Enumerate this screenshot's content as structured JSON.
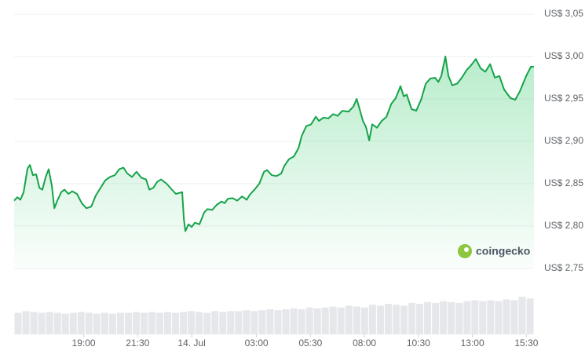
{
  "chart_data": {
    "type": "line",
    "watermark": "coingecko",
    "x": [
      -8.22,
      -8.07,
      -7.93,
      -7.78,
      -7.6,
      -7.49,
      -7.35,
      -7.2,
      -7.05,
      -6.91,
      -6.76,
      -6.62,
      -6.47,
      -6.36,
      -6.22,
      -6.04,
      -5.89,
      -5.71,
      -5.53,
      -5.31,
      -5.09,
      -4.87,
      -4.65,
      -4.44,
      -4.22,
      -4,
      -3.78,
      -3.56,
      -3.35,
      -3.16,
      -2.98,
      -2.76,
      -2.55,
      -2.33,
      -2.11,
      -1.96,
      -1.78,
      -1.6,
      -1.42,
      -1.16,
      -0.95,
      -0.73,
      -0.44,
      -0.36,
      -0.29,
      -0.15,
      0,
      0.15,
      0.36,
      0.58,
      0.73,
      0.95,
      1.16,
      1.38,
      1.53,
      1.67,
      1.89,
      2.11,
      2.33,
      2.55,
      2.69,
      2.91,
      3.13,
      3.35,
      3.49,
      3.71,
      3.93,
      4.15,
      4.29,
      4.51,
      4.73,
      4.95,
      5.09,
      5.31,
      5.53,
      5.75,
      5.89,
      6.11,
      6.33,
      6.55,
      6.76,
      6.98,
      7.27,
      7.49,
      7.64,
      7.78,
      7.93,
      8.07,
      8.22,
      8.36,
      8.58,
      8.8,
      9.02,
      9.24,
      9.45,
      9.67,
      9.82,
      9.96,
      10.18,
      10.4,
      10.62,
      10.84,
      11.05,
      11.27,
      11.42,
      11.56,
      11.75,
      11.89,
      12.07,
      12.29,
      12.51,
      12.73,
      12.95,
      13.16,
      13.38,
      13.6,
      13.82,
      14.04,
      14.25,
      14.47,
      14.76,
      14.98,
      15.2,
      15.49,
      15.71,
      15.85
    ],
    "series": [
      {
        "color": "#16a34a",
        "values": [
          2.83,
          2.834,
          2.831,
          2.84,
          2.868,
          2.872,
          2.86,
          2.861,
          2.845,
          2.843,
          2.858,
          2.867,
          2.847,
          2.821,
          2.83,
          2.84,
          2.843,
          2.838,
          2.841,
          2.838,
          2.827,
          2.821,
          2.823,
          2.836,
          2.845,
          2.854,
          2.858,
          2.86,
          2.867,
          2.869,
          2.862,
          2.858,
          2.864,
          2.857,
          2.855,
          2.843,
          2.845,
          2.852,
          2.855,
          2.85,
          2.844,
          2.838,
          2.84,
          2.808,
          2.794,
          2.802,
          2.799,
          2.804,
          2.802,
          2.816,
          2.82,
          2.819,
          2.825,
          2.829,
          2.827,
          2.832,
          2.833,
          2.83,
          2.835,
          2.831,
          2.837,
          2.843,
          2.85,
          2.864,
          2.866,
          2.86,
          2.859,
          2.862,
          2.871,
          2.879,
          2.882,
          2.892,
          2.906,
          2.918,
          2.92,
          2.929,
          2.924,
          2.928,
          2.927,
          2.932,
          2.93,
          2.936,
          2.935,
          2.941,
          2.95,
          2.938,
          2.924,
          2.917,
          2.901,
          2.92,
          2.916,
          2.924,
          2.929,
          2.944,
          2.951,
          2.965,
          2.953,
          2.955,
          2.938,
          2.936,
          2.949,
          2.968,
          2.974,
          2.975,
          2.97,
          2.977,
          3.0,
          2.977,
          2.966,
          2.968,
          2.975,
          2.984,
          2.99,
          2.997,
          2.986,
          2.982,
          2.991,
          2.975,
          2.977,
          2.961,
          2.951,
          2.949,
          2.959,
          2.977,
          2.988,
          2.988
        ]
      }
    ],
    "volume": {
      "color": "#e5e7eb",
      "values": [
        24,
        26,
        25,
        24,
        25,
        24,
        23,
        24,
        25,
        24,
        23,
        24,
        23,
        24,
        24,
        25,
        24,
        25,
        24,
        25,
        24,
        25,
        26,
        25,
        24,
        26,
        25,
        26,
        26,
        27,
        26,
        27,
        28,
        27,
        28,
        29,
        28,
        30,
        29,
        30,
        31,
        30,
        32,
        31,
        30,
        33,
        32,
        34,
        33,
        32,
        35,
        34,
        36,
        35,
        37,
        36,
        35,
        37,
        38,
        37,
        38,
        37,
        39,
        38,
        42,
        40
      ]
    },
    "xlim": [
      -8.22,
      15.85
    ],
    "xticks": [
      {
        "value": -5,
        "label": "19:00"
      },
      {
        "value": -2.5,
        "label": "21:30"
      },
      {
        "value": 0,
        "label": "14. Jul"
      },
      {
        "value": 3,
        "label": "03:00"
      },
      {
        "value": 5.5,
        "label": "05:30"
      },
      {
        "value": 8,
        "label": "08:00"
      },
      {
        "value": 10.5,
        "label": "10:30"
      },
      {
        "value": 13,
        "label": "13:00"
      },
      {
        "value": 15.5,
        "label": "15:30"
      }
    ],
    "ylim": [
      2.75,
      3.05
    ],
    "yticks": [
      {
        "value": 2.75,
        "label": "US$ 2,75"
      },
      {
        "value": 2.8,
        "label": "US$ 2,80"
      },
      {
        "value": 2.85,
        "label": "US$ 2,85"
      },
      {
        "value": 2.9,
        "label": "US$ 2,90"
      },
      {
        "value": 2.95,
        "label": "US$ 2,95"
      },
      {
        "value": 3.0,
        "label": "US$ 3,00"
      },
      {
        "value": 3.05,
        "label": "US$ 3,05"
      }
    ],
    "grid": true
  }
}
